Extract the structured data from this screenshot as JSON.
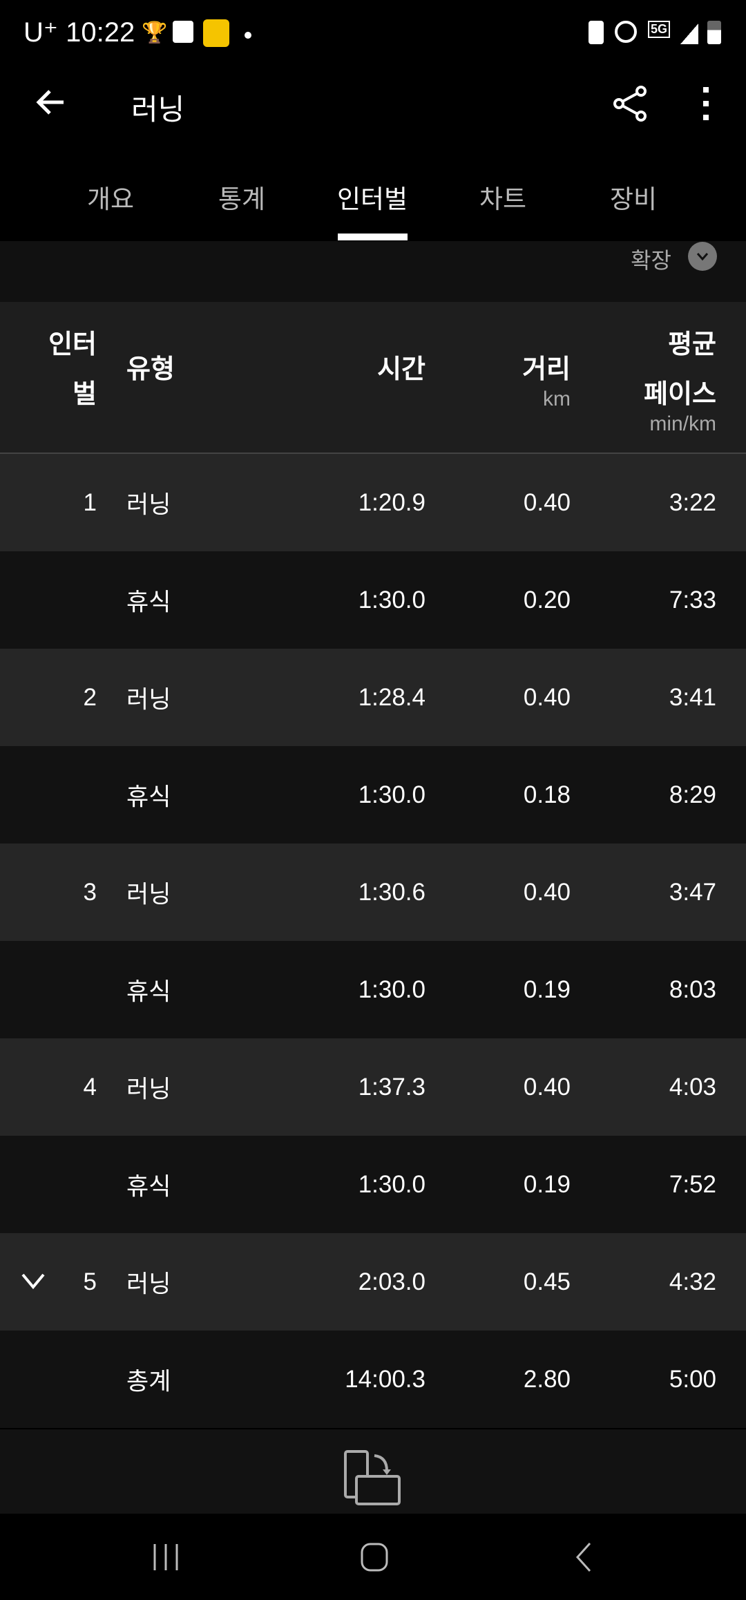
{
  "status_bar": {
    "carrier": "U⁺",
    "time": "10:22",
    "network": "5G"
  },
  "app_bar": {
    "title": "러닝",
    "back_icon": "arrow-left-icon",
    "share_icon": "share-icon",
    "more_icon": "more-vertical-icon"
  },
  "tabs": [
    {
      "label": "개요"
    },
    {
      "label": "통계"
    },
    {
      "label": "인터벌",
      "active": true
    },
    {
      "label": "차트"
    },
    {
      "label": "장비"
    }
  ],
  "expand": {
    "label": "확장"
  },
  "table": {
    "headers": {
      "interval_1": "인터",
      "interval_2": "벌",
      "type": "유형",
      "time": "시간",
      "distance": "거리",
      "distance_unit": "km",
      "pace_1": "평균",
      "pace_2": "페이스",
      "pace_unit": "min/km"
    },
    "rows": [
      {
        "interval": "1",
        "type": "러닝",
        "time": "1:20.9",
        "distance": "0.40",
        "pace": "3:22"
      },
      {
        "interval": "",
        "type": "휴식",
        "time": "1:30.0",
        "distance": "0.20",
        "pace": "7:33"
      },
      {
        "interval": "2",
        "type": "러닝",
        "time": "1:28.4",
        "distance": "0.40",
        "pace": "3:41"
      },
      {
        "interval": "",
        "type": "휴식",
        "time": "1:30.0",
        "distance": "0.18",
        "pace": "8:29"
      },
      {
        "interval": "3",
        "type": "러닝",
        "time": "1:30.6",
        "distance": "0.40",
        "pace": "3:47"
      },
      {
        "interval": "",
        "type": "휴식",
        "time": "1:30.0",
        "distance": "0.19",
        "pace": "8:03"
      },
      {
        "interval": "4",
        "type": "러닝",
        "time": "1:37.3",
        "distance": "0.40",
        "pace": "4:03"
      },
      {
        "interval": "",
        "type": "휴식",
        "time": "1:30.0",
        "distance": "0.19",
        "pace": "7:52"
      },
      {
        "interval": "5",
        "type": "러닝",
        "time": "2:03.0",
        "distance": "0.45",
        "pace": "4:32",
        "expandable": true
      }
    ],
    "total": {
      "type": "총계",
      "time": "14:00.3",
      "distance": "2.80",
      "pace": "5:00"
    }
  },
  "colors": {
    "bg": "#000000",
    "row_odd": "#262626",
    "row_even": "#121212",
    "header": "#1e1e1e",
    "muted": "#aaaaaa"
  }
}
